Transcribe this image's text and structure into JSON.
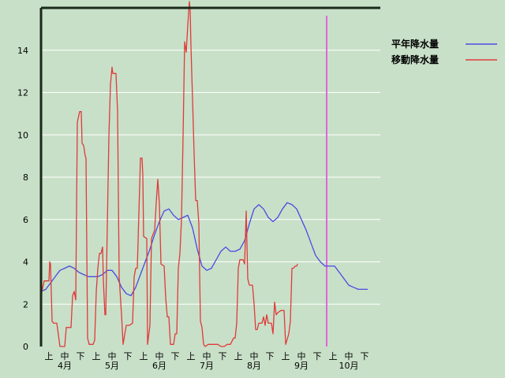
{
  "chart_data": {
    "type": "line",
    "ylim": [
      0,
      16
    ],
    "yticks": [
      0,
      2,
      4,
      6,
      8,
      10,
      12,
      14
    ],
    "x_range": [
      0,
      21
    ],
    "x_tick_labels": [
      "上",
      "中",
      "下",
      "上",
      "中",
      "下",
      "上",
      "中",
      "下",
      "上",
      "中",
      "下",
      "上",
      "中",
      "下",
      "上",
      "中",
      "下",
      "上",
      "中",
      "下"
    ],
    "month_labels": [
      {
        "label": "4月",
        "x": 1
      },
      {
        "label": "5月",
        "x": 4
      },
      {
        "label": "6月",
        "x": 7
      },
      {
        "label": "7月",
        "x": 10
      },
      {
        "label": "8月",
        "x": 13
      },
      {
        "label": "9月",
        "x": 16
      },
      {
        "label": "10月",
        "x": 19
      }
    ],
    "grid": true,
    "legend": {
      "placement": "top-right"
    },
    "marker_line": {
      "x": 18.1,
      "color": "#dd66dd"
    },
    "series": [
      {
        "name": "平年降水量",
        "color": "#4a4ae0",
        "points": [
          [
            0,
            2.6
          ],
          [
            0.3,
            2.7
          ],
          [
            0.6,
            3.0
          ],
          [
            0.9,
            3.3
          ],
          [
            1.2,
            3.6
          ],
          [
            1.5,
            3.7
          ],
          [
            1.8,
            3.8
          ],
          [
            2.1,
            3.7
          ],
          [
            2.4,
            3.5
          ],
          [
            2.7,
            3.4
          ],
          [
            3.0,
            3.3
          ],
          [
            3.3,
            3.3
          ],
          [
            3.6,
            3.3
          ],
          [
            3.9,
            3.4
          ],
          [
            4.2,
            3.6
          ],
          [
            4.5,
            3.6
          ],
          [
            4.8,
            3.3
          ],
          [
            5.1,
            2.8
          ],
          [
            5.4,
            2.5
          ],
          [
            5.7,
            2.4
          ],
          [
            6.0,
            2.8
          ],
          [
            6.3,
            3.4
          ],
          [
            6.6,
            4.0
          ],
          [
            6.9,
            4.6
          ],
          [
            7.2,
            5.3
          ],
          [
            7.5,
            5.9
          ],
          [
            7.8,
            6.4
          ],
          [
            8.1,
            6.5
          ],
          [
            8.4,
            6.2
          ],
          [
            8.7,
            6.0
          ],
          [
            9.0,
            6.1
          ],
          [
            9.3,
            6.2
          ],
          [
            9.6,
            5.6
          ],
          [
            9.9,
            4.6
          ],
          [
            10.2,
            3.8
          ],
          [
            10.5,
            3.6
          ],
          [
            10.8,
            3.7
          ],
          [
            11.1,
            4.1
          ],
          [
            11.4,
            4.5
          ],
          [
            11.7,
            4.7
          ],
          [
            12.0,
            4.5
          ],
          [
            12.3,
            4.5
          ],
          [
            12.6,
            4.6
          ],
          [
            12.9,
            5.0
          ],
          [
            13.2,
            5.8
          ],
          [
            13.5,
            6.5
          ],
          [
            13.8,
            6.7
          ],
          [
            14.1,
            6.5
          ],
          [
            14.4,
            6.1
          ],
          [
            14.7,
            5.9
          ],
          [
            15.0,
            6.1
          ],
          [
            15.3,
            6.5
          ],
          [
            15.6,
            6.8
          ],
          [
            15.9,
            6.7
          ],
          [
            16.2,
            6.5
          ],
          [
            16.5,
            6.0
          ],
          [
            16.8,
            5.5
          ],
          [
            17.1,
            4.9
          ],
          [
            17.4,
            4.3
          ],
          [
            17.7,
            4.0
          ],
          [
            18.0,
            3.8
          ],
          [
            18.3,
            3.8
          ],
          [
            18.6,
            3.8
          ],
          [
            18.9,
            3.5
          ],
          [
            19.2,
            3.2
          ],
          [
            19.5,
            2.9
          ],
          [
            19.8,
            2.8
          ],
          [
            20.1,
            2.7
          ],
          [
            20.4,
            2.7
          ],
          [
            20.7,
            2.7
          ]
        ]
      },
      {
        "name": "移動降水量",
        "color": "#e03a3a",
        "points": [
          [
            0,
            0
          ],
          [
            0.05,
            2.6
          ],
          [
            0.2,
            3.1
          ],
          [
            0.5,
            3.1
          ],
          [
            0.55,
            4.0
          ],
          [
            0.6,
            3.9
          ],
          [
            0.7,
            1.2
          ],
          [
            0.8,
            1.1
          ],
          [
            1.0,
            1.1
          ],
          [
            1.2,
            0
          ],
          [
            1.3,
            0
          ],
          [
            1.5,
            0
          ],
          [
            1.6,
            0.9
          ],
          [
            1.9,
            0.9
          ],
          [
            2.0,
            2.4
          ],
          [
            2.1,
            2.6
          ],
          [
            2.2,
            2.2
          ],
          [
            2.3,
            10.6
          ],
          [
            2.45,
            11.1
          ],
          [
            2.55,
            11.1
          ],
          [
            2.6,
            9.6
          ],
          [
            2.7,
            9.5
          ],
          [
            2.8,
            9.0
          ],
          [
            2.85,
            8.9
          ],
          [
            2.95,
            0.4
          ],
          [
            3.05,
            0.1
          ],
          [
            3.3,
            0.1
          ],
          [
            3.4,
            0.3
          ],
          [
            3.5,
            2.6
          ],
          [
            3.6,
            3.7
          ],
          [
            3.7,
            4.4
          ],
          [
            3.8,
            4.4
          ],
          [
            3.9,
            4.7
          ],
          [
            3.95,
            3.1
          ],
          [
            4.05,
            1.5
          ],
          [
            4.1,
            1.5
          ],
          [
            4.3,
            9.9
          ],
          [
            4.4,
            12.4
          ],
          [
            4.5,
            13.2
          ],
          [
            4.55,
            12.9
          ],
          [
            4.75,
            12.9
          ],
          [
            4.85,
            11.1
          ],
          [
            4.95,
            3.3
          ],
          [
            5.1,
            1.5
          ],
          [
            5.2,
            0.1
          ],
          [
            5.4,
            1.0
          ],
          [
            5.6,
            1.0
          ],
          [
            5.8,
            1.1
          ],
          [
            5.9,
            3.3
          ],
          [
            6.0,
            3.7
          ],
          [
            6.1,
            3.7
          ],
          [
            6.3,
            8.9
          ],
          [
            6.4,
            8.9
          ],
          [
            6.45,
            8.1
          ],
          [
            6.5,
            5.2
          ],
          [
            6.7,
            5.1
          ],
          [
            6.75,
            0.1
          ],
          [
            6.9,
            1.0
          ],
          [
            7.0,
            5.1
          ],
          [
            7.2,
            5.5
          ],
          [
            7.3,
            6.8
          ],
          [
            7.4,
            7.9
          ],
          [
            7.5,
            6.7
          ],
          [
            7.6,
            3.9
          ],
          [
            7.8,
            3.8
          ],
          [
            7.9,
            2.3
          ],
          [
            8.0,
            1.4
          ],
          [
            8.1,
            1.4
          ],
          [
            8.2,
            0.1
          ],
          [
            8.4,
            0.1
          ],
          [
            8.5,
            0.6
          ],
          [
            8.6,
            0.6
          ],
          [
            8.7,
            3.7
          ],
          [
            8.8,
            4.4
          ],
          [
            8.9,
            6.0
          ],
          [
            9.0,
            9.9
          ],
          [
            9.1,
            14.4
          ],
          [
            9.2,
            13.9
          ],
          [
            9.3,
            15.2
          ],
          [
            9.4,
            16.3
          ],
          [
            9.45,
            15.9
          ],
          [
            9.5,
            14.2
          ],
          [
            9.6,
            11.7
          ],
          [
            9.7,
            9.1
          ],
          [
            9.8,
            6.9
          ],
          [
            9.9,
            6.9
          ],
          [
            10.0,
            5.8
          ],
          [
            10.1,
            1.2
          ],
          [
            10.2,
            0.9
          ],
          [
            10.3,
            0.1
          ],
          [
            10.4,
            0
          ],
          [
            10.6,
            0.1
          ],
          [
            11.0,
            0.1
          ],
          [
            11.2,
            0.1
          ],
          [
            11.4,
            0
          ],
          [
            11.6,
            0
          ],
          [
            11.8,
            0.1
          ],
          [
            12.0,
            0.1
          ],
          [
            12.2,
            0.4
          ],
          [
            12.3,
            0.4
          ],
          [
            12.4,
            1.1
          ],
          [
            12.5,
            3.7
          ],
          [
            12.6,
            4.1
          ],
          [
            12.8,
            4.1
          ],
          [
            12.9,
            3.9
          ],
          [
            13.0,
            6.4
          ],
          [
            13.1,
            3.2
          ],
          [
            13.2,
            2.9
          ],
          [
            13.4,
            2.9
          ],
          [
            13.5,
            2.0
          ],
          [
            13.6,
            0.8
          ],
          [
            13.7,
            0.8
          ],
          [
            13.8,
            1.1
          ],
          [
            14.0,
            1.1
          ],
          [
            14.1,
            1.4
          ],
          [
            14.2,
            1.0
          ],
          [
            14.3,
            1.5
          ],
          [
            14.4,
            1.1
          ],
          [
            14.6,
            1.1
          ],
          [
            14.7,
            0.6
          ],
          [
            14.8,
            2.1
          ],
          [
            14.9,
            1.5
          ],
          [
            15.0,
            1.6
          ],
          [
            15.2,
            1.7
          ],
          [
            15.4,
            1.7
          ],
          [
            15.5,
            0.1
          ],
          [
            15.7,
            0.6
          ],
          [
            15.8,
            1.2
          ],
          [
            15.9,
            3.7
          ],
          [
            16.0,
            3.7
          ],
          [
            16.1,
            3.8
          ],
          [
            16.2,
            3.8
          ],
          [
            16.25,
            3.9
          ]
        ]
      }
    ]
  }
}
